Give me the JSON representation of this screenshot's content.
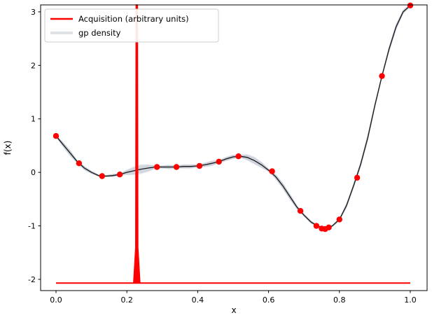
{
  "chart_data": {
    "type": "line",
    "title": "",
    "xlabel": "x",
    "ylabel": "f(x)",
    "xlim": [
      -0.0435,
      1.0475
    ],
    "ylim": [
      -2.21,
      3.13
    ],
    "grid": false,
    "legend_position": "upper left",
    "legend": [
      {
        "label": "Acquisition (arbitrary units)",
        "color": "#ff0000",
        "type": "line"
      },
      {
        "label": "gp density",
        "color": "#b9c0cc",
        "type": "band"
      }
    ],
    "xticks": {
      "values": [
        0.0,
        0.2,
        0.4,
        0.6,
        0.8,
        1.0
      ],
      "labels": [
        "0.0",
        "0.2",
        "0.4",
        "0.6",
        "0.8",
        "1.0"
      ]
    },
    "yticks": {
      "values": [
        -2,
        -1,
        0,
        1,
        2,
        3
      ],
      "labels": [
        "-2",
        "-1",
        "0",
        "1",
        "2",
        "3"
      ]
    },
    "colors": {
      "gp_mean": "#1a1a1a",
      "band": "#8f9bb0",
      "acquisition": "#ff0000",
      "points": "#ff0000",
      "spine": "#000000"
    },
    "gp_mean": {
      "x": [
        0.0,
        0.02,
        0.04,
        0.06,
        0.08,
        0.1,
        0.12,
        0.14,
        0.16,
        0.18,
        0.2,
        0.22,
        0.24,
        0.26,
        0.28,
        0.3,
        0.32,
        0.34,
        0.36,
        0.38,
        0.4,
        0.42,
        0.44,
        0.46,
        0.48,
        0.5,
        0.52,
        0.54,
        0.56,
        0.58,
        0.6,
        0.62,
        0.64,
        0.66,
        0.68,
        0.7,
        0.72,
        0.74,
        0.76,
        0.78,
        0.8,
        0.82,
        0.84,
        0.86,
        0.88,
        0.9,
        0.92,
        0.94,
        0.96,
        0.98,
        1.0
      ],
      "y": [
        0.68,
        0.52,
        0.36,
        0.2,
        0.08,
        0.0,
        -0.06,
        -0.07,
        -0.06,
        -0.04,
        0.0,
        0.03,
        0.06,
        0.08,
        0.1,
        0.1,
        0.1,
        0.1,
        0.11,
        0.11,
        0.12,
        0.14,
        0.17,
        0.2,
        0.25,
        0.29,
        0.3,
        0.28,
        0.22,
        0.14,
        0.04,
        -0.08,
        -0.25,
        -0.45,
        -0.65,
        -0.8,
        -0.93,
        -1.01,
        -1.05,
        -1.0,
        -0.88,
        -0.62,
        -0.25,
        0.15,
        0.65,
        1.25,
        1.8,
        2.3,
        2.72,
        3.0,
        3.12
      ],
      "sigma": [
        0.02,
        0.05,
        0.06,
        0.03,
        0.04,
        0.03,
        0.02,
        0.02,
        0.03,
        0.02,
        0.05,
        0.08,
        0.09,
        0.07,
        0.03,
        0.03,
        0.04,
        0.03,
        0.04,
        0.04,
        0.03,
        0.04,
        0.05,
        0.03,
        0.04,
        0.04,
        0.03,
        0.06,
        0.07,
        0.06,
        0.03,
        0.05,
        0.06,
        0.06,
        0.04,
        0.03,
        0.03,
        0.02,
        0.02,
        0.02,
        0.03,
        0.05,
        0.05,
        0.06,
        0.07,
        0.06,
        0.04,
        0.06,
        0.06,
        0.04,
        0.03
      ]
    },
    "observations": {
      "x": [
        0.0,
        0.065,
        0.13,
        0.18,
        0.285,
        0.34,
        0.405,
        0.46,
        0.515,
        0.61,
        0.69,
        0.735,
        0.75,
        0.76,
        0.77,
        0.8,
        0.85,
        0.92,
        1.0
      ],
      "y": [
        0.68,
        0.17,
        -0.07,
        -0.04,
        0.1,
        0.1,
        0.12,
        0.2,
        0.3,
        0.02,
        -0.72,
        -1.0,
        -1.05,
        -1.06,
        -1.03,
        -0.88,
        -0.1,
        1.8,
        3.12
      ]
    },
    "acquisition": {
      "baseline": -2.07,
      "x_start": 0.0,
      "x_end": 1.0,
      "spike_x": 0.228,
      "spike_base_halfwidth": 0.009,
      "spike_shoulder_y": -1.4,
      "spike_top": 3.13
    }
  }
}
